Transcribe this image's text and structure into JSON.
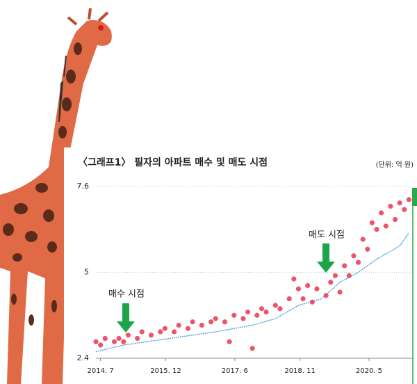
{
  "chart_data": {
    "type": "scatter",
    "title": "〈그래프1〉 필자의 아파트 매수 및 매도 시점",
    "unit": "(단위: 억 원)",
    "annotations": [
      "매수 시점",
      "매도 시점"
    ],
    "xlim": [
      2014.4,
      2021.3
    ],
    "xticks": [
      {
        "value": 2014.5,
        "label": "2014. 7"
      },
      {
        "value": 2015.917,
        "label": "2015. 12"
      },
      {
        "value": 2017.417,
        "label": "2017. 6"
      },
      {
        "value": 2018.833,
        "label": "2018. 11"
      },
      {
        "value": 2020.333,
        "label": "2020. 5"
      }
    ],
    "ylim": [
      2.4,
      7.6
    ],
    "yticks": [
      {
        "value": 2.4,
        "label": "2.4"
      },
      5,
      {
        "value": 7.6,
        "label": "7.6"
      }
    ],
    "grid": true,
    "points": {
      "color": "#e8425a",
      "x": [
        2014.4,
        2014.5,
        2014.6,
        2014.8,
        2014.9,
        2015.0,
        2015.1,
        2015.3,
        2015.4,
        2015.6,
        2015.8,
        2015.9,
        2016.1,
        2016.2,
        2016.4,
        2016.5,
        2016.7,
        2016.9,
        2017.0,
        2017.2,
        2017.3,
        2017.4,
        2017.6,
        2017.7,
        2017.8,
        2017.9,
        2018.0,
        2018.1,
        2018.3,
        2018.4,
        2018.6,
        2018.7,
        2018.8,
        2018.9,
        2019.0,
        2019.1,
        2019.2,
        2019.4,
        2019.5,
        2019.6,
        2019.7,
        2019.8,
        2019.9,
        2020.0,
        2020.1,
        2020.2,
        2020.3,
        2020.4,
        2020.5,
        2020.6,
        2020.7,
        2020.8,
        2020.9,
        2021.0,
        2021.1,
        2021.2
      ],
      "values": [
        2.9,
        2.8,
        3.0,
        2.9,
        3.0,
        2.9,
        3.1,
        3.0,
        3.2,
        3.1,
        3.2,
        3.3,
        3.2,
        3.4,
        3.3,
        3.5,
        3.4,
        3.5,
        3.6,
        3.5,
        2.9,
        3.7,
        3.6,
        3.8,
        2.7,
        3.7,
        3.9,
        3.8,
        4.0,
        3.9,
        4.2,
        4.8,
        4.5,
        4.2,
        4.6,
        4.1,
        4.5,
        4.3,
        4.7,
        4.9,
        4.4,
        5.2,
        4.9,
        5.5,
        5.3,
        6.0,
        5.7,
        6.5,
        6.3,
        6.8,
        6.4,
        7.0,
        6.6,
        7.1,
        6.9,
        7.2
      ]
    },
    "floor_line": {
      "color": "#5aa6e0",
      "x": [
        2014.4,
        2015.0,
        2016.0,
        2017.0,
        2017.8,
        2018.3,
        2018.8,
        2019.3,
        2019.7,
        2020.1,
        2020.5,
        2021.0,
        2021.2
      ],
      "values": [
        2.6,
        2.8,
        3.0,
        3.2,
        3.4,
        3.6,
        4.0,
        4.2,
        4.7,
        5.0,
        5.4,
        5.8,
        6.2
      ]
    }
  }
}
